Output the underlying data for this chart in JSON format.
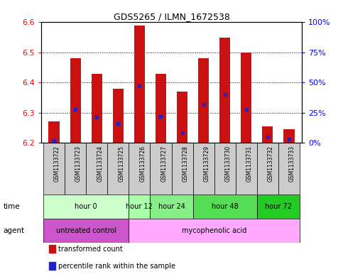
{
  "title": "GDS5265 / ILMN_1672538",
  "samples": [
    "GSM1133722",
    "GSM1133723",
    "GSM1133724",
    "GSM1133725",
    "GSM1133726",
    "GSM1133727",
    "GSM1133728",
    "GSM1133729",
    "GSM1133730",
    "GSM1133731",
    "GSM1133732",
    "GSM1133733"
  ],
  "transformed_count": [
    6.27,
    6.48,
    6.43,
    6.38,
    6.59,
    6.43,
    6.37,
    6.48,
    6.55,
    6.5,
    6.255,
    6.245
  ],
  "percentile_rank": [
    2,
    28,
    21,
    16,
    47,
    22,
    8,
    32,
    40,
    28,
    5,
    3
  ],
  "ylim_left": [
    6.2,
    6.6
  ],
  "ylim_right": [
    0,
    100
  ],
  "yticks_left": [
    6.2,
    6.3,
    6.4,
    6.5,
    6.6
  ],
  "yticks_right": [
    0,
    25,
    50,
    75,
    100
  ],
  "ytick_right_labels": [
    "0%",
    "25%",
    "50%",
    "75%",
    "100%"
  ],
  "bar_bottom": 6.2,
  "bar_color": "#cc1111",
  "dot_color": "#2222cc",
  "time_groups": [
    {
      "label": "hour 0",
      "start": 0,
      "end": 4,
      "color": "#ccffcc"
    },
    {
      "label": "hour 12",
      "start": 4,
      "end": 5,
      "color": "#aaffaa"
    },
    {
      "label": "hour 24",
      "start": 5,
      "end": 7,
      "color": "#88ee88"
    },
    {
      "label": "hour 48",
      "start": 7,
      "end": 10,
      "color": "#55dd55"
    },
    {
      "label": "hour 72",
      "start": 10,
      "end": 12,
      "color": "#22cc22"
    }
  ],
  "agent_groups": [
    {
      "label": "untreated control",
      "start": 0,
      "end": 4,
      "color": "#ee66ee"
    },
    {
      "label": "mycophenolic acid",
      "start": 4,
      "end": 12,
      "color": "#ffaaff"
    }
  ],
  "bg_color": "#ffffff",
  "plot_bg_color": "#ffffff",
  "grid_color": "#000000",
  "label_time": "time",
  "label_agent": "agent",
  "legend_items": [
    {
      "label": "transformed count",
      "color": "#cc1111"
    },
    {
      "label": "percentile rank within the sample",
      "color": "#2222cc"
    }
  ]
}
